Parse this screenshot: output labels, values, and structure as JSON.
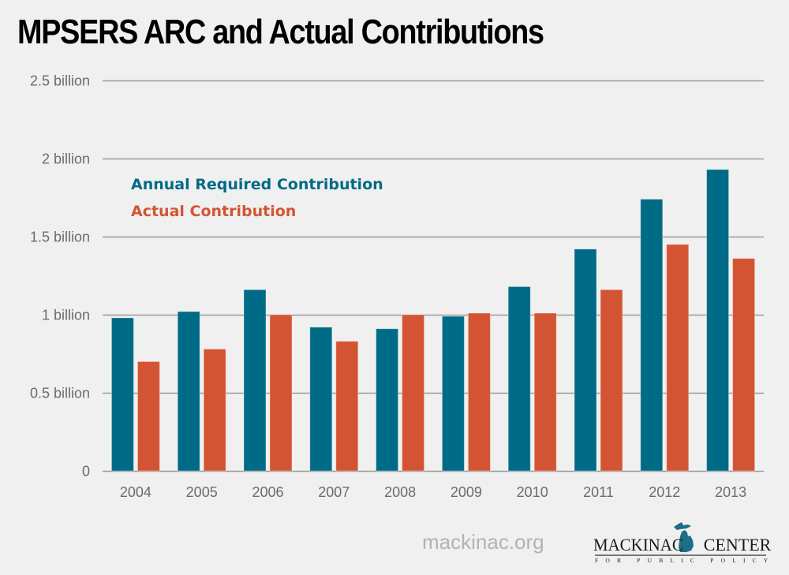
{
  "chart_data": {
    "type": "bar",
    "title": "MPSERS ARC and Actual Contributions",
    "xlabel": "",
    "ylabel": "",
    "categories": [
      "2004",
      "2005",
      "2006",
      "2007",
      "2008",
      "2009",
      "2010",
      "2011",
      "2012",
      "2013"
    ],
    "series": [
      {
        "name": "Annual Required Contribution",
        "color": "#006b86",
        "values": [
          0.98,
          1.02,
          1.16,
          0.92,
          0.91,
          0.99,
          1.18,
          1.42,
          1.74,
          1.93
        ]
      },
      {
        "name": "Actual Contribution",
        "color": "#d35433",
        "values": [
          0.7,
          0.78,
          1.0,
          0.83,
          1.0,
          1.01,
          1.01,
          1.16,
          1.45,
          1.36
        ]
      }
    ],
    "units": "billion",
    "ylim": [
      0,
      2.5
    ],
    "yticks": [
      0,
      0.5,
      1,
      1.5,
      2,
      2.5
    ],
    "ytick_labels": [
      "0",
      "0.5 billion",
      "1 billion",
      "1.5 billion",
      "2 billion",
      "2.5 billion"
    ],
    "grid": true,
    "legend_position": "top-left"
  },
  "footer": {
    "url": "mackinac.org",
    "logo_left": "MACKINAC",
    "logo_right": "CENTER",
    "logo_tagline": "FOR PUBLIC POLICY"
  },
  "colors": {
    "background": "#f0f0f0",
    "grid": "#9a9a9a",
    "tick_text": "#6b6b6b"
  }
}
